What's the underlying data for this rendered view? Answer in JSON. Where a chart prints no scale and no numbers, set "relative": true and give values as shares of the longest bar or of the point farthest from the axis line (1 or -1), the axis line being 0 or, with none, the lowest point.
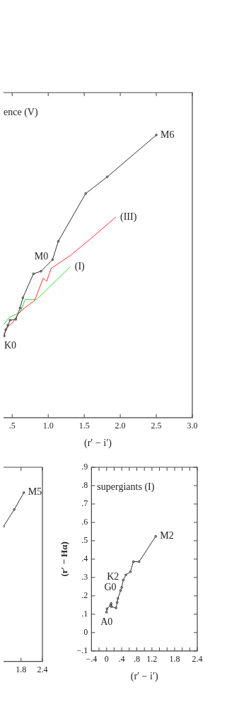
{
  "chart_data": [
    {
      "type": "line",
      "relative": true,
      "xlabel": "(r′ − i′)",
      "xlim": [
        0.38,
        3.0
      ],
      "xticks": [
        {
          "value": 0.5,
          "label": ".5"
        },
        {
          "value": 1.0,
          "label": "1.0"
        },
        {
          "value": 1.5,
          "label": "1.5"
        },
        {
          "value": 2.0,
          "label": "2.0"
        },
        {
          "value": 2.5,
          "label": "2.5"
        },
        {
          "value": 3.0,
          "label": "3.0"
        }
      ],
      "series": [
        {
          "color": "#333333",
          "marker": "square",
          "x": [
            0.39,
            0.41,
            0.44,
            0.47,
            0.55,
            0.61,
            0.648,
            0.795,
            0.9,
            1.06,
            1.14,
            1.52,
            1.82,
            2.5
          ],
          "values": [
            0.289,
            0.311,
            0.327,
            0.345,
            0.348,
            0.388,
            0.424,
            0.509,
            0.518,
            0.559,
            0.624,
            0.793,
            0.852,
            1.0
          ]
        },
        {
          "color": "#ff3333",
          "x": [
            0.38,
            0.45,
            0.51,
            0.59,
            0.67,
            0.81,
            0.93,
            0.98,
            1.04,
            1.31,
            1.63,
            1.94
          ],
          "values": [
            0.293,
            0.325,
            0.337,
            0.37,
            0.388,
            0.414,
            0.493,
            0.483,
            0.528,
            0.574,
            0.642,
            0.71
          ]
        },
        {
          "color": "#33dd33",
          "x": [
            0.38,
            0.46,
            0.61,
            0.68,
            0.84,
            1.31
          ],
          "values": [
            0.328,
            0.355,
            0.372,
            0.418,
            0.418,
            0.535
          ]
        }
      ],
      "annotations": [
        "ence (V)",
        {
          "text": "M6",
          "x": 2.5,
          "y": 1.0
        },
        {
          "text": "M0",
          "x": 1.06,
          "y": 0.559
        },
        {
          "text": "K0",
          "x": 0.39,
          "y": 0.289
        },
        {
          "text": "(III)",
          "x": 1.94,
          "y": 0.71
        },
        {
          "text": "(I)",
          "x": 1.31,
          "y": 0.535
        }
      ]
    },
    {
      "type": "line",
      "relative": true,
      "xlim": [
        1.31,
        2.4
      ],
      "xticks": [
        {
          "value": 1.8,
          "label": "1.8"
        },
        {
          "value": 2.4,
          "label": "2.4"
        }
      ],
      "series": [
        {
          "color": "#333333",
          "marker": "square",
          "x": [
            1.31,
            1.61,
            1.88
          ],
          "values": [
            0.8,
            0.9,
            1.0
          ]
        }
      ],
      "annotations": [
        {
          "text": "M5",
          "x": 1.88,
          "y": 1.0
        }
      ]
    },
    {
      "type": "line",
      "xlabel": "(r′ − i′)",
      "ylabel": "(r′ − Hα)",
      "xlim": [
        -0.4,
        2.4
      ],
      "ylim": [
        -0.1,
        0.9
      ],
      "xticks": [
        {
          "value": -0.4,
          "label": "−.4"
        },
        {
          "value": -0.2,
          "label": null
        },
        {
          "value": 0,
          "label": "0"
        },
        {
          "value": 0.2,
          "label": null
        },
        {
          "value": 0.4,
          "label": ".4"
        },
        {
          "value": 0.6,
          "label": null
        },
        {
          "value": 0.8,
          "label": ".8"
        },
        {
          "value": 1.0,
          "label": null
        },
        {
          "value": 1.2,
          "label": "1.2"
        },
        {
          "value": 1.4,
          "label": null
        },
        {
          "value": 1.6,
          "label": null
        },
        {
          "value": 1.8,
          "label": "1.8"
        },
        {
          "value": 2.0,
          "label": null
        },
        {
          "value": 2.2,
          "label": null
        },
        {
          "value": 2.4,
          "label": "2.4"
        }
      ],
      "yticks": [
        {
          "value": -0.1,
          "label": "−.1"
        },
        {
          "value": 0,
          "label": "0"
        },
        {
          "value": 0.1,
          "label": ".1"
        },
        {
          "value": 0.2,
          "label": ".2"
        },
        {
          "value": 0.3,
          "label": ".3"
        },
        {
          "value": 0.4,
          "label": ".4"
        },
        {
          "value": 0.5,
          "label": ".5"
        },
        {
          "value": 0.6,
          "label": ".6"
        },
        {
          "value": 0.7,
          "label": ".7"
        },
        {
          "value": 0.8,
          "label": ".8"
        },
        {
          "value": 0.9,
          "label": ".9"
        }
      ],
      "series": [
        {
          "color": "#333333",
          "marker": "square",
          "x": [
            0.0,
            0.01,
            0.1,
            0.12,
            0.13,
            0.25,
            0.28,
            0.3,
            0.37,
            0.4,
            0.44,
            0.51,
            0.63,
            0.71,
            0.86,
            1.3
          ],
          "values": [
            0.111,
            0.13,
            0.148,
            0.159,
            0.141,
            0.134,
            0.164,
            0.186,
            0.229,
            0.246,
            0.286,
            0.314,
            0.331,
            0.386,
            0.386,
            0.524
          ]
        }
      ],
      "annotations": [
        "supergiants (I)",
        {
          "text": "A0",
          "x": 0.0,
          "y": 0.111
        },
        {
          "text": "G0",
          "x": 0.37,
          "y": 0.229
        },
        {
          "text": "K2",
          "x": 0.44,
          "y": 0.286
        },
        {
          "text": "M2",
          "x": 1.3,
          "y": 0.524
        }
      ]
    }
  ]
}
